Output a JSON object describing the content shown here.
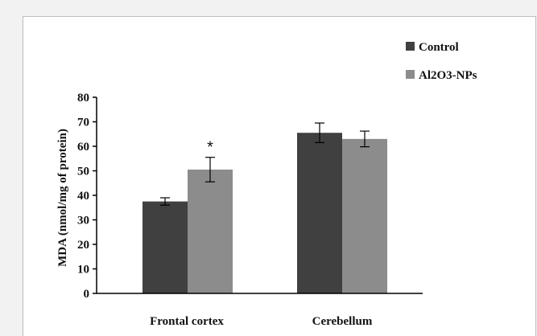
{
  "chart_data": {
    "type": "bar",
    "categories": [
      "Frontal cortex",
      "Cerebellum"
    ],
    "series": [
      {
        "name": "Control",
        "color": "#404040",
        "values": [
          37.5,
          65.5
        ],
        "errors": [
          1.5,
          4.0
        ]
      },
      {
        "name": "Al2O3-NPs",
        "color": "#8c8c8c",
        "values": [
          50.5,
          63.0
        ],
        "errors": [
          5.0,
          3.2
        ]
      }
    ],
    "ylabel": "MDA (nmol/mg of protein)",
    "ylim": [
      0,
      80
    ],
    "yticks": [
      0,
      10,
      20,
      30,
      40,
      50,
      60,
      70,
      80
    ],
    "annotations": [
      {
        "text": "*",
        "category": "Frontal cortex",
        "series": "Al2O3-NPs"
      }
    ],
    "grid": false,
    "legend_position": "top-right"
  }
}
